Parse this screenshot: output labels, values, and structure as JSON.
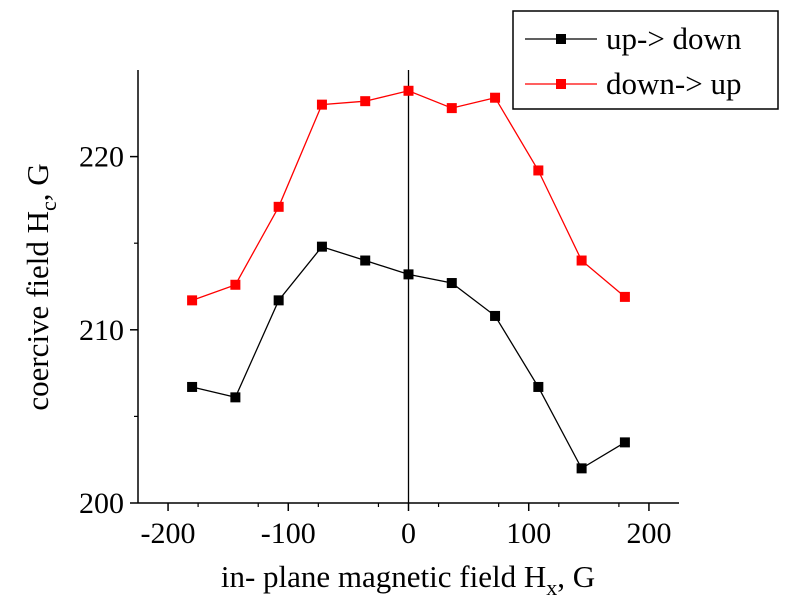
{
  "chart_data": {
    "type": "line",
    "title": "",
    "xlabel": {
      "main": "in- plane magnetic field H",
      "sub": "x",
      "suffix": ", G"
    },
    "ylabel": {
      "main": "coercive field H",
      "sub": "c",
      "suffix": ", G"
    },
    "xlim": [
      -225,
      225
    ],
    "ylim": [
      200,
      225
    ],
    "xticks": [
      -200,
      -100,
      0,
      100,
      200
    ],
    "yticks": [
      200,
      210,
      220
    ],
    "grid": false,
    "legend_position": "top-right",
    "vertical_reference_line_x": 0,
    "x": [
      -180,
      -144,
      -108,
      -72,
      -36,
      0,
      36,
      72,
      108,
      144,
      180
    ],
    "series": [
      {
        "name": "up-> down",
        "color": "#000000",
        "values": [
          206.7,
          206.1,
          211.7,
          214.8,
          214.0,
          213.2,
          212.7,
          210.8,
          206.7,
          202.0,
          203.5
        ]
      },
      {
        "name": "down-> up",
        "color": "#ff0000",
        "values": [
          211.7,
          212.6,
          217.1,
          223.0,
          223.2,
          223.8,
          222.8,
          223.4,
          219.2,
          214.0,
          211.9
        ]
      }
    ]
  }
}
